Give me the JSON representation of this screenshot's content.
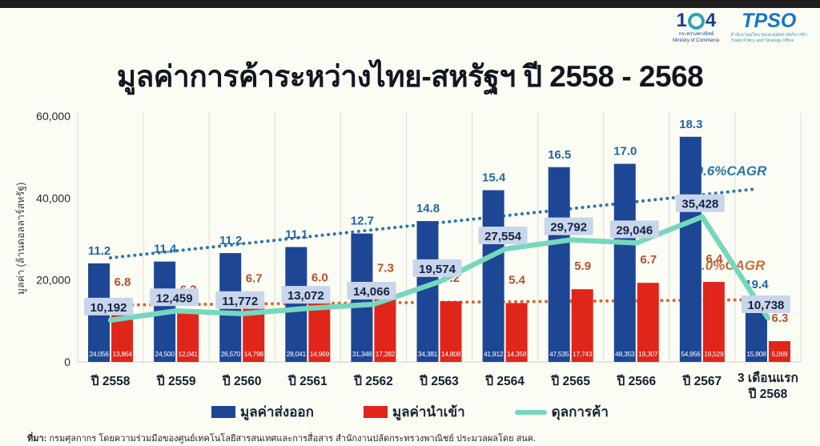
{
  "page": {
    "top_bar_color": "#202020",
    "background": "#fbfcf4"
  },
  "header": {
    "title": "มูลค่าการค้าระหว่างไทย-สหรัฐฯ ปี 2558 - 2568"
  },
  "logos": {
    "ministry": {
      "number_left": "1",
      "number_right": "4",
      "caption_line1": "กระทรวงพาณิชย์",
      "caption_line2": "Ministry of Commerce"
    },
    "tpso": {
      "acronym": "TPSO",
      "caption_line1": "สำนักงานนโยบายและยุทธศาสตร์การค้า",
      "caption_line2": "Trade Policy and Strategy Office"
    }
  },
  "chart_data": {
    "type": "bar",
    "title": "มูลค่าการค้าระหว่างไทย-สหรัฐฯ ปี 2558 - 2568",
    "xlabel": "",
    "ylabel": "มูลค่า (ล้านดอลลาร์สหรัฐ)",
    "ylim": [
      0,
      60000
    ],
    "grid": "vertical",
    "legend_position": "bottom",
    "yticks": [
      {
        "value": 0,
        "label": "0"
      },
      {
        "value": 20000,
        "label": "20,000"
      },
      {
        "value": 40000,
        "label": "40,000"
      },
      {
        "value": 60000,
        "label": "60,000"
      }
    ],
    "categories": [
      [
        "ปี 2558"
      ],
      [
        "ปี 2559"
      ],
      [
        "ปี 2560"
      ],
      [
        "ปี 2561"
      ],
      [
        "ปี 2562"
      ],
      [
        "ปี 2563"
      ],
      [
        "ปี 2564"
      ],
      [
        "ปี 2565"
      ],
      [
        "ปี 2566"
      ],
      [
        "ปี 2567"
      ],
      [
        "3 เดือนแรก",
        "ปี 2568"
      ]
    ],
    "series": [
      {
        "name": "มูลค่าส่งออก",
        "type": "bar",
        "color": "#1d4795",
        "values": [
          24056,
          24500,
          26570,
          28041,
          31348,
          34381,
          41912,
          47535,
          48353,
          54956,
          15808
        ],
        "value_labels": [
          "24,056",
          "24,500",
          "26,570",
          "28,041",
          "31,348",
          "34,381",
          "41,912",
          "47,535",
          "48,353",
          "54,956",
          "15,808"
        ],
        "pct_labels": [
          "11.2",
          "11.4",
          "11.2",
          "11.1",
          "12.7",
          "14.8",
          "15.4",
          "16.5",
          "17.0",
          "18.3",
          "19.4"
        ],
        "pct_color": "#2465a8"
      },
      {
        "name": "มูลค่านำเข้า",
        "type": "bar",
        "color": "#e0251b",
        "values": [
          13864,
          12041,
          14798,
          14969,
          17282,
          14808,
          14358,
          17743,
          19307,
          19529,
          5069
        ],
        "value_labels": [
          "13,864",
          "12,041",
          "14,798",
          "14,969",
          "17,282",
          "14,808",
          "14,358",
          "17,743",
          "19,307",
          "19,529",
          "5,069"
        ],
        "pct_labels": [
          "6.8",
          "6.2",
          "6.7",
          "6.0",
          "7.3",
          "7.2",
          "5.4",
          "5.9",
          "6.7",
          "6.4",
          "6.3"
        ],
        "pct_color": "#b5512e"
      },
      {
        "name": "ดุลการค้า",
        "type": "line",
        "color": "#76d7bd",
        "values": [
          10192,
          12459,
          11772,
          13072,
          14066,
          19574,
          27554,
          29792,
          29046,
          35428,
          10738
        ],
        "value_labels": [
          "10,192",
          "12,459",
          "11,772",
          "13,072",
          "14,066",
          "19,574",
          "27,554",
          "29,792",
          "29,046",
          "35,428",
          "10,738"
        ],
        "label_box": {
          "fill": "#c9d5ea",
          "text_color": "#16233f"
        }
      }
    ],
    "trendlines": [
      {
        "name": "export-trendline",
        "label": "9.6%CAGR",
        "color": "#2e77a8",
        "start_value": 25400,
        "end_value": 42200
      },
      {
        "name": "import-trendline",
        "label": "4.0%CAGR",
        "color": "#cb6d3a",
        "start_value": 13900,
        "end_value": 15200
      }
    ]
  },
  "legend": {
    "items": [
      {
        "label": "มูลค่าส่งออก",
        "type": "square",
        "color": "#1d4795"
      },
      {
        "label": "มูลค่านำเข้า",
        "type": "square",
        "color": "#e0251b"
      },
      {
        "label": "ดุลการค้า",
        "type": "line",
        "color": "#76d7bd"
      }
    ]
  },
  "footer": {
    "prefix": "ที่มา:",
    "text": " กรมศุลกากร โดยความร่วมมือของศูนย์เทคโนโลยีสารสนเทศและการสื่อสาร สำนักงานปลัดกระทรวงพาณิชย์ ประมวลผลโดย สนค."
  }
}
